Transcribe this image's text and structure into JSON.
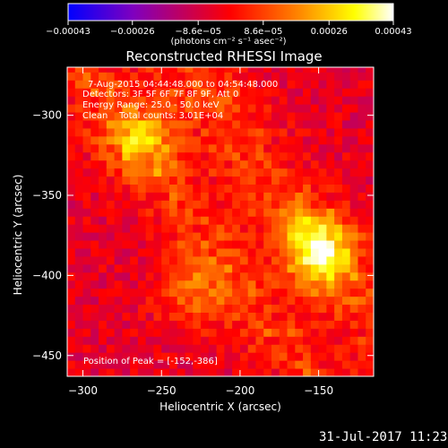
{
  "chart_data": {
    "type": "heatmap",
    "title": "Reconstructed RHESSI Image",
    "xlabel": "Heliocentric X (arcsec)",
    "ylabel": "Heliocentric Y (arcsec)",
    "xlim": [
      -310,
      -115
    ],
    "ylim": [
      -463,
      -270
    ],
    "xticks": [
      -300,
      -250,
      -200,
      -150
    ],
    "xtick_labels": [
      "−300",
      "−250",
      "−200",
      "−150"
    ],
    "yticks": [
      -300,
      -350,
      -400,
      -450
    ],
    "ytick_labels": [
      "−300",
      "−350",
      "−400",
      "−450"
    ],
    "colorbar": {
      "range": [
        -0.00043,
        0.00043
      ],
      "ticks": [
        -0.00043,
        -0.00026,
        -8.6e-05,
        8.6e-05,
        0.00026,
        0.00043
      ],
      "tick_labels": [
        "−0.00043",
        "−0.00026",
        "−8.6e−05",
        "8.6e−05",
        "0.00026",
        "0.00043"
      ],
      "units": "(photons cm⁻² s⁻¹ asec⁻²)",
      "colors": [
        "#0000ff",
        "#7f00bf",
        "#ff0000",
        "#ff8000",
        "#ffff00",
        "#ffffff"
      ]
    },
    "annotations": {
      "time": "7-Aug-2015 04:44:48.000 to 04:54:48.000",
      "detectors": "Detectors: 3F 5F 6F 7F 8F 9F, Att 0",
      "energy": "Energy Range: 25.0 - 50.0 keV",
      "clean": "Clean    Total counts: 3.01E+04",
      "peak": "Position of Peak = [-152,-386]"
    },
    "peak": {
      "x": -152,
      "y": -386
    },
    "sources": [
      {
        "x": -152,
        "y": -386,
        "value": 0.00043
      },
      {
        "x": -265,
        "y": -318,
        "value": 0.00026
      },
      {
        "x": -232,
        "y": -415,
        "value": 0.0002
      }
    ]
  },
  "footer": {
    "date": "31-Jul-2017 11:23"
  }
}
